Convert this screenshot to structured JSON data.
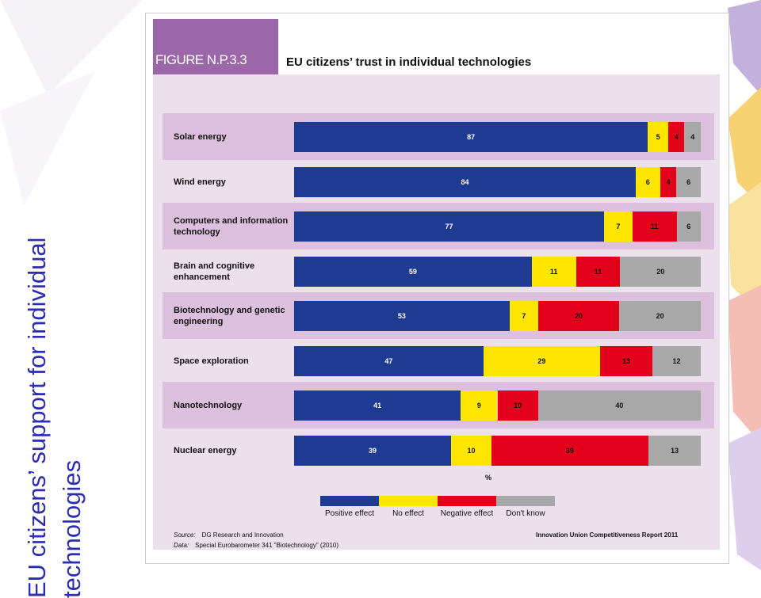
{
  "slide": {
    "title": "EU citizens’ support for individual technologies"
  },
  "figure": {
    "label": "FIGURE N.P.3.3",
    "title": "EU citizens’ trust in individual technologies",
    "unit_label": "%",
    "source": "DG Research and Innovation",
    "data": "Special Eurobarometer 341 \"Biotechnology\" (2010)",
    "source_prefix": "Source:",
    "data_prefix": "Data:",
    "report": "Innovation Union Competitiveness Report 2011"
  },
  "colors": {
    "positive": "#1f3a93",
    "no_effect": "#ffe600",
    "negative": "#e2001a",
    "dont_know": "#a8a8a8"
  },
  "chart_data": {
    "type": "bar",
    "orientation": "horizontal",
    "stacked": true,
    "categories": [
      "Solar energy",
      "Wind energy",
      "Computers and information technology",
      "Brain and cognitive enhancement",
      "Biotechnology and genetic engineering",
      "Space exploration",
      "Nanotechnology",
      "Nuclear energy"
    ],
    "series": [
      {
        "name": "Positive effect",
        "values": [
          87,
          84,
          77,
          59,
          53,
          47,
          41,
          39
        ]
      },
      {
        "name": "No effect",
        "values": [
          5,
          6,
          7,
          11,
          7,
          29,
          9,
          10
        ]
      },
      {
        "name": "Negative effect",
        "values": [
          4,
          4,
          11,
          11,
          20,
          13,
          10,
          39
        ]
      },
      {
        "name": "Don't know",
        "values": [
          4,
          6,
          6,
          20,
          20,
          12,
          40,
          13
        ]
      }
    ],
    "xlabel": "%",
    "legend": "bottom"
  }
}
